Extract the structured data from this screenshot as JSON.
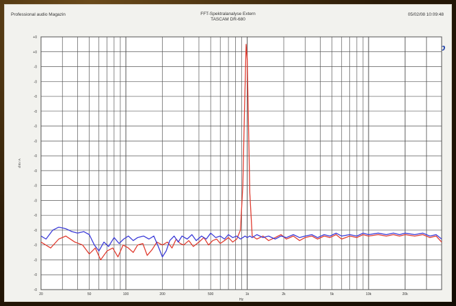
{
  "header": {
    "left": "Professional audio Magazin",
    "center_line1": "FFT-Spektralanalyse Extern",
    "center_line2": "TASCAM DR-680",
    "right": "05/02/08 10:09:48"
  },
  "logo": "Ap",
  "colors": {
    "series1": "#e03a2e",
    "series2": "#3a3ad8",
    "grid": "#555555"
  },
  "chart_data": {
    "type": "line",
    "title": "FFT-Spektralanalyse Extern",
    "subtitle": "TASCAM DR-680",
    "xlabel": "Hz",
    "ylabel": "d B r A",
    "xscale": "log",
    "xlim": [
      20,
      40000
    ],
    "ylim": [
      -160,
      10
    ],
    "grid": true,
    "x_ticks": [
      "20",
      "50",
      "100",
      "200",
      "500",
      "1k",
      "2k",
      "5k",
      "10k",
      "20k"
    ],
    "y_ticks": [
      "+0",
      "+0",
      "-0",
      "-0",
      "-0",
      "-0",
      "-0",
      "-0",
      "-0",
      "-0",
      "-0",
      "-0",
      "-0",
      "-0",
      "-0",
      "-0",
      "-0",
      "-0"
    ],
    "series": [
      {
        "color": "#e03a2e",
        "points": [
          [
            20,
            -128
          ],
          [
            24,
            -132
          ],
          [
            28,
            -126
          ],
          [
            32,
            -124
          ],
          [
            38,
            -128
          ],
          [
            44,
            -130
          ],
          [
            50,
            -136
          ],
          [
            56,
            -132
          ],
          [
            62,
            -140
          ],
          [
            70,
            -134
          ],
          [
            78,
            -132
          ],
          [
            86,
            -138
          ],
          [
            95,
            -130
          ],
          [
            105,
            -132
          ],
          [
            115,
            -135
          ],
          [
            125,
            -130
          ],
          [
            138,
            -129
          ],
          [
            150,
            -137
          ],
          [
            165,
            -133
          ],
          [
            180,
            -128
          ],
          [
            200,
            -130
          ],
          [
            220,
            -128
          ],
          [
            240,
            -132
          ],
          [
            260,
            -126
          ],
          [
            280,
            -129
          ],
          [
            300,
            -130
          ],
          [
            330,
            -127
          ],
          [
            360,
            -131
          ],
          [
            400,
            -128
          ],
          [
            440,
            -125
          ],
          [
            480,
            -130
          ],
          [
            520,
            -127
          ],
          [
            560,
            -126
          ],
          [
            600,
            -129
          ],
          [
            650,
            -127
          ],
          [
            700,
            -125
          ],
          [
            760,
            -128
          ],
          [
            820,
            -126
          ],
          [
            880,
            -120
          ],
          [
            920,
            -90
          ],
          [
            950,
            -40
          ],
          [
            980,
            5
          ],
          [
            1000,
            -5
          ],
          [
            1020,
            -40
          ],
          [
            1050,
            -95
          ],
          [
            1100,
            -124
          ],
          [
            1200,
            -126
          ],
          [
            1350,
            -124
          ],
          [
            1500,
            -127
          ],
          [
            1700,
            -125
          ],
          [
            1900,
            -123
          ],
          [
            2100,
            -126
          ],
          [
            2400,
            -124
          ],
          [
            2700,
            -127
          ],
          [
            3000,
            -125
          ],
          [
            3400,
            -124
          ],
          [
            3800,
            -126
          ],
          [
            4300,
            -124
          ],
          [
            4800,
            -125
          ],
          [
            5400,
            -123
          ],
          [
            6000,
            -126
          ],
          [
            7000,
            -124
          ],
          [
            8000,
            -125
          ],
          [
            9000,
            -123
          ],
          [
            10000,
            -124
          ],
          [
            12000,
            -123
          ],
          [
            14000,
            -124
          ],
          [
            16000,
            -123
          ],
          [
            18000,
            -124
          ],
          [
            20000,
            -123
          ],
          [
            24000,
            -124
          ],
          [
            28000,
            -123
          ],
          [
            32000,
            -125
          ],
          [
            36000,
            -124
          ],
          [
            40000,
            -128
          ]
        ]
      },
      {
        "color": "#3a3ad8",
        "points": [
          [
            20,
            -124
          ],
          [
            22,
            -126
          ],
          [
            25,
            -120
          ],
          [
            28,
            -118
          ],
          [
            32,
            -119
          ],
          [
            36,
            -121
          ],
          [
            40,
            -122
          ],
          [
            45,
            -121
          ],
          [
            50,
            -123
          ],
          [
            55,
            -130
          ],
          [
            60,
            -134
          ],
          [
            66,
            -128
          ],
          [
            72,
            -131
          ],
          [
            80,
            -125
          ],
          [
            88,
            -129
          ],
          [
            96,
            -126
          ],
          [
            105,
            -124
          ],
          [
            115,
            -127
          ],
          [
            125,
            -125
          ],
          [
            140,
            -124
          ],
          [
            155,
            -126
          ],
          [
            170,
            -124
          ],
          [
            185,
            -131
          ],
          [
            200,
            -138
          ],
          [
            215,
            -134
          ],
          [
            230,
            -127
          ],
          [
            250,
            -124
          ],
          [
            270,
            -128
          ],
          [
            290,
            -124
          ],
          [
            320,
            -126
          ],
          [
            350,
            -123
          ],
          [
            380,
            -127
          ],
          [
            420,
            -124
          ],
          [
            460,
            -126
          ],
          [
            500,
            -122
          ],
          [
            550,
            -125
          ],
          [
            600,
            -124
          ],
          [
            650,
            -126
          ],
          [
            700,
            -123
          ],
          [
            760,
            -125
          ],
          [
            820,
            -124
          ],
          [
            880,
            -126
          ],
          [
            920,
            -125
          ],
          [
            960,
            -124
          ],
          [
            1000,
            -125
          ],
          [
            1050,
            -124
          ],
          [
            1100,
            -125
          ],
          [
            1200,
            -123
          ],
          [
            1350,
            -125
          ],
          [
            1500,
            -124
          ],
          [
            1700,
            -126
          ],
          [
            1900,
            -124
          ],
          [
            2100,
            -125
          ],
          [
            2400,
            -123
          ],
          [
            2700,
            -125
          ],
          [
            3000,
            -124
          ],
          [
            3400,
            -123
          ],
          [
            3800,
            -125
          ],
          [
            4300,
            -123
          ],
          [
            4800,
            -124
          ],
          [
            5400,
            -122
          ],
          [
            6000,
            -124
          ],
          [
            7000,
            -123
          ],
          [
            8000,
            -124
          ],
          [
            9000,
            -122
          ],
          [
            10000,
            -123
          ],
          [
            12000,
            -122
          ],
          [
            14000,
            -123
          ],
          [
            16000,
            -122
          ],
          [
            18000,
            -123
          ],
          [
            20000,
            -122
          ],
          [
            24000,
            -123
          ],
          [
            28000,
            -122
          ],
          [
            32000,
            -124
          ],
          [
            36000,
            -123
          ],
          [
            40000,
            -126
          ]
        ]
      }
    ]
  }
}
